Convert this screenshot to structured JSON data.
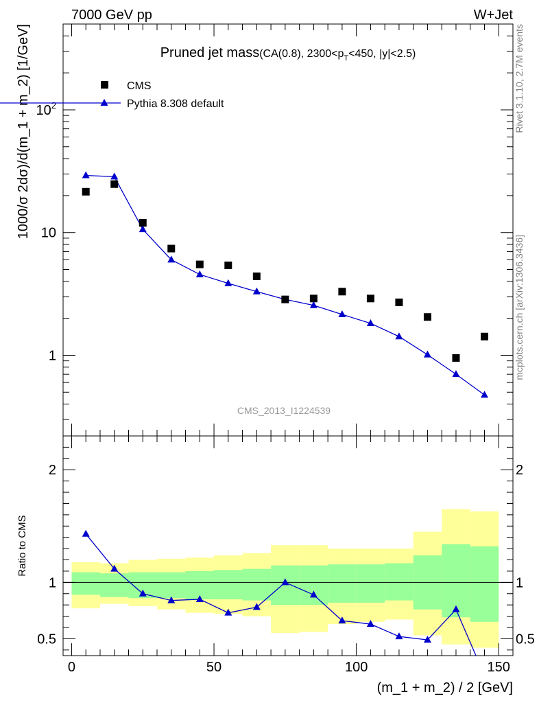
{
  "header": {
    "left": "7000 GeV pp",
    "right": "W+Jet"
  },
  "title": {
    "main": "Pruned jet mass",
    "detail_prefix": "(CA(0.8), 2300<p",
    "detail_sub": "T",
    "detail_suffix": "<450, |y|<2.5)"
  },
  "side_labels": {
    "rivet": "Rivet 3.1.10,  2.7M events",
    "mcplots": "mcplots.cern.ch [arXiv:1306.3436]"
  },
  "analysis_id": "CMS_2013_I1224539",
  "legend": {
    "data_label": "CMS",
    "mc_label": "Pythia 8.308 default"
  },
  "colors": {
    "mc": "#0000cc",
    "band_inner": "#99ff99",
    "band_outer": "#ffff99",
    "data": "#000000",
    "side_text": "#808080"
  },
  "chart_data": [
    {
      "type": "scatter",
      "panel": "main",
      "ylabel": "1000/σ 2dσ)/d(m_1 + m_2) [1/GeV]",
      "yscale": "log",
      "ylim": [
        0.22,
        500
      ],
      "xlim": [
        -3,
        155
      ],
      "ytick_labels": [
        "1",
        "10",
        "10^2"
      ],
      "x": [
        5,
        15,
        25,
        35,
        45,
        55,
        65,
        75,
        85,
        95,
        105,
        115,
        125,
        135,
        145
      ],
      "series": [
        {
          "name": "CMS",
          "marker": "square",
          "values": [
            21.5,
            24.8,
            12.0,
            7.4,
            5.5,
            5.4,
            4.4,
            2.85,
            2.9,
            3.3,
            2.9,
            2.7,
            2.05,
            0.95,
            1.42
          ]
        },
        {
          "name": "Pythia 8.308 default",
          "marker": "triangle",
          "line": true,
          "values": [
            29.2,
            28.5,
            10.6,
            6.0,
            4.55,
            3.85,
            3.3,
            2.85,
            2.55,
            2.15,
            1.82,
            1.42,
            1.01,
            0.7,
            0.475
          ]
        }
      ]
    },
    {
      "type": "line",
      "panel": "ratio",
      "xlabel": "(m_1 + m_2) / 2 [GeV]",
      "ylabel": "Ratio to CMS",
      "ylim": [
        0.35,
        2.3
      ],
      "xlim": [
        -3,
        155
      ],
      "yticks": [
        0.5,
        1,
        2
      ],
      "ytick_labels": [
        "0.5",
        "1",
        "2"
      ],
      "xticks": [
        0,
        50,
        100,
        150
      ],
      "xtick_labels": [
        "0",
        "50",
        "100",
        "150"
      ],
      "bin_edges": [
        0,
        10,
        20,
        30,
        40,
        50,
        60,
        70,
        80,
        90,
        100,
        110,
        120,
        130,
        140,
        150
      ],
      "band_inner_low": [
        0.89,
        0.87,
        0.86,
        0.86,
        0.85,
        0.85,
        0.84,
        0.8,
        0.8,
        0.82,
        0.82,
        0.84,
        0.76,
        0.69,
        0.65
      ],
      "band_inner_high": [
        1.09,
        1.08,
        1.09,
        1.09,
        1.1,
        1.11,
        1.12,
        1.15,
        1.15,
        1.16,
        1.16,
        1.17,
        1.24,
        1.34,
        1.32
      ],
      "band_outer_low": [
        0.77,
        0.81,
        0.79,
        0.76,
        0.73,
        0.72,
        0.7,
        0.55,
        0.56,
        0.63,
        0.65,
        0.67,
        0.53,
        0.45,
        0.42
      ],
      "band_outer_high": [
        1.18,
        1.17,
        1.2,
        1.21,
        1.22,
        1.24,
        1.26,
        1.33,
        1.33,
        1.3,
        1.3,
        1.3,
        1.45,
        1.65,
        1.63
      ],
      "series": [
        {
          "name": "Pythia 8.308 default",
          "x": [
            5,
            15,
            25,
            35,
            45,
            55,
            65,
            75,
            85,
            95,
            105,
            115,
            125,
            135,
            142
          ],
          "values": [
            1.43,
            1.12,
            0.9,
            0.84,
            0.85,
            0.73,
            0.78,
            1.0,
            0.89,
            0.66,
            0.63,
            0.52,
            0.49,
            0.76,
            0.35
          ]
        }
      ],
      "reference": 1
    }
  ]
}
